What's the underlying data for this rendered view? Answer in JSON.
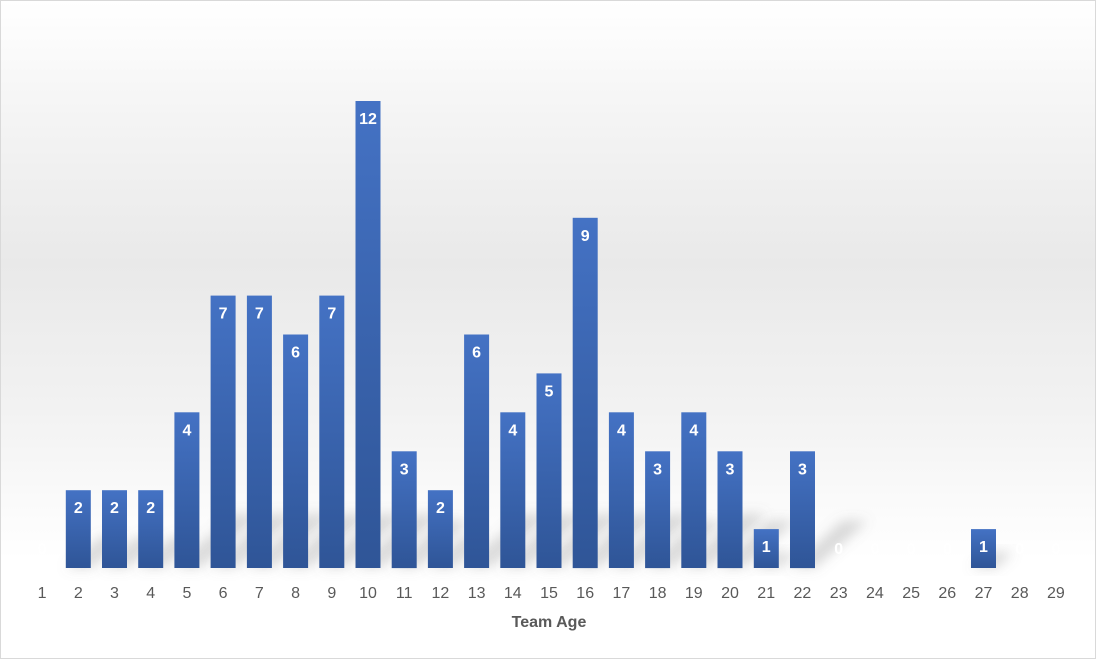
{
  "chart_data": {
    "type": "bar",
    "categories": [
      "1",
      "2",
      "3",
      "4",
      "5",
      "6",
      "7",
      "8",
      "9",
      "10",
      "11",
      "12",
      "13",
      "14",
      "15",
      "16",
      "17",
      "18",
      "19",
      "20",
      "21",
      "22",
      "23",
      "24",
      "25",
      "26",
      "27",
      "28",
      "29"
    ],
    "values": [
      0,
      2,
      2,
      2,
      4,
      7,
      7,
      6,
      7,
      12,
      3,
      2,
      6,
      4,
      5,
      9,
      4,
      3,
      4,
      3,
      1,
      3,
      0,
      0,
      0,
      0,
      1,
      0,
      0
    ],
    "title": "",
    "xlabel": "Team Age",
    "ylabel": "",
    "ylim": [
      0,
      12
    ],
    "grid": false,
    "legend": "none",
    "data_labels": true,
    "colors": {
      "bar_top": "#4472c4",
      "bar_bottom": "#2f5597",
      "label": "#ffffff",
      "axis_text": "#595959"
    }
  }
}
